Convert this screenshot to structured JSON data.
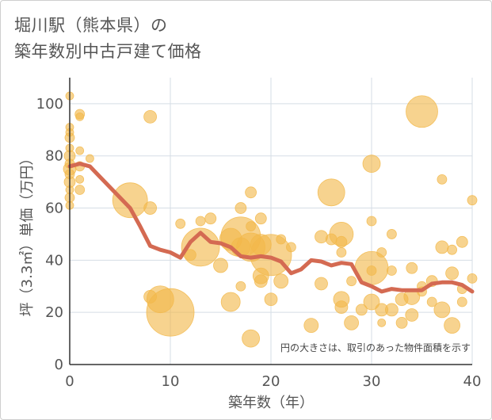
{
  "chart_data": {
    "type": "scatter",
    "title_lines": [
      "堀川駅（熊本県）の",
      "築年数別中古戸建て価格"
    ],
    "xlabel": "築年数（年）",
    "ylabel": "坪（3.3㎡）単価（万円）",
    "xlim": [
      0,
      40
    ],
    "ylim": [
      0,
      110
    ],
    "xticks": [
      0,
      10,
      20,
      30,
      40
    ],
    "yticks": [
      0,
      20,
      40,
      60,
      80,
      100
    ],
    "grid": true,
    "annotation": "円の大きさは、取引のあった物件面積を示す",
    "colors": {
      "bubble": "#f2b84b",
      "line": "#d46a52",
      "grid": "#d5dde5",
      "axis": "#333333"
    },
    "bubbles": [
      {
        "x": 0,
        "y": 103,
        "s": 5
      },
      {
        "x": 0,
        "y": 91,
        "s": 5
      },
      {
        "x": 0,
        "y": 89,
        "s": 5
      },
      {
        "x": 0,
        "y": 87,
        "s": 6
      },
      {
        "x": 0,
        "y": 83,
        "s": 5
      },
      {
        "x": 0,
        "y": 80,
        "s": 7
      },
      {
        "x": 0,
        "y": 77,
        "s": 6
      },
      {
        "x": 0,
        "y": 75,
        "s": 8
      },
      {
        "x": 0,
        "y": 73,
        "s": 6
      },
      {
        "x": 0,
        "y": 70,
        "s": 7
      },
      {
        "x": 0,
        "y": 67,
        "s": 5
      },
      {
        "x": 0,
        "y": 64,
        "s": 6
      },
      {
        "x": 0,
        "y": 61,
        "s": 5
      },
      {
        "x": 1,
        "y": 96,
        "s": 6
      },
      {
        "x": 1,
        "y": 95,
        "s": 5
      },
      {
        "x": 1,
        "y": 82,
        "s": 5
      },
      {
        "x": 1,
        "y": 76,
        "s": 6
      },
      {
        "x": 1,
        "y": 71,
        "s": 5
      },
      {
        "x": 1,
        "y": 67,
        "s": 6
      },
      {
        "x": 2,
        "y": 79,
        "s": 5
      },
      {
        "x": 6,
        "y": 63,
        "s": 22
      },
      {
        "x": 8,
        "y": 95,
        "s": 8
      },
      {
        "x": 8,
        "y": 60,
        "s": 8
      },
      {
        "x": 8,
        "y": 26,
        "s": 8
      },
      {
        "x": 9,
        "y": 25,
        "s": 17
      },
      {
        "x": 10,
        "y": 20,
        "s": 30
      },
      {
        "x": 11,
        "y": 54,
        "s": 6
      },
      {
        "x": 12,
        "y": 42,
        "s": 7
      },
      {
        "x": 13,
        "y": 45,
        "s": 24
      },
      {
        "x": 13,
        "y": 55,
        "s": 6
      },
      {
        "x": 14,
        "y": 56,
        "s": 7
      },
      {
        "x": 15,
        "y": 38,
        "s": 9
      },
      {
        "x": 16,
        "y": 48,
        "s": 14
      },
      {
        "x": 16,
        "y": 24,
        "s": 12
      },
      {
        "x": 17,
        "y": 60,
        "s": 7
      },
      {
        "x": 17,
        "y": 49,
        "s": 25
      },
      {
        "x": 17,
        "y": 45,
        "s": 12
      },
      {
        "x": 17,
        "y": 30,
        "s": 6
      },
      {
        "x": 18,
        "y": 66,
        "s": 7
      },
      {
        "x": 18,
        "y": 53,
        "s": 6
      },
      {
        "x": 18,
        "y": 45,
        "s": 18
      },
      {
        "x": 18,
        "y": 10,
        "s": 11
      },
      {
        "x": 19,
        "y": 56,
        "s": 7
      },
      {
        "x": 19,
        "y": 46,
        "s": 13
      },
      {
        "x": 19,
        "y": 34,
        "s": 10
      },
      {
        "x": 19,
        "y": 32,
        "s": 8
      },
      {
        "x": 20,
        "y": 42,
        "s": 26
      },
      {
        "x": 20,
        "y": 25,
        "s": 8
      },
      {
        "x": 21,
        "y": 48,
        "s": 6
      },
      {
        "x": 21,
        "y": 32,
        "s": 9
      },
      {
        "x": 22,
        "y": 45,
        "s": 6
      },
      {
        "x": 24,
        "y": 15,
        "s": 9
      },
      {
        "x": 25,
        "y": 49,
        "s": 8
      },
      {
        "x": 25,
        "y": 31,
        "s": 8
      },
      {
        "x": 26,
        "y": 66,
        "s": 17
      },
      {
        "x": 26,
        "y": 48,
        "s": 7
      },
      {
        "x": 27,
        "y": 50,
        "s": 15
      },
      {
        "x": 27,
        "y": 47,
        "s": 7
      },
      {
        "x": 27,
        "y": 43,
        "s": 6
      },
      {
        "x": 27,
        "y": 25,
        "s": 10
      },
      {
        "x": 27,
        "y": 22,
        "s": 8
      },
      {
        "x": 28,
        "y": 32,
        "s": 6
      },
      {
        "x": 28,
        "y": 16,
        "s": 9
      },
      {
        "x": 29,
        "y": 21,
        "s": 7
      },
      {
        "x": 30,
        "y": 77,
        "s": 11
      },
      {
        "x": 30,
        "y": 55,
        "s": 6
      },
      {
        "x": 30,
        "y": 37,
        "s": 21
      },
      {
        "x": 30,
        "y": 36,
        "s": 6
      },
      {
        "x": 30,
        "y": 24,
        "s": 10
      },
      {
        "x": 31,
        "y": 43,
        "s": 6
      },
      {
        "x": 31,
        "y": 21,
        "s": 8
      },
      {
        "x": 31,
        "y": 16,
        "s": 5
      },
      {
        "x": 32,
        "y": 50,
        "s": 6
      },
      {
        "x": 32,
        "y": 36,
        "s": 6
      },
      {
        "x": 32,
        "y": 21,
        "s": 8
      },
      {
        "x": 33,
        "y": 25,
        "s": 8
      },
      {
        "x": 33,
        "y": 16,
        "s": 7
      },
      {
        "x": 34,
        "y": 37,
        "s": 7
      },
      {
        "x": 34,
        "y": 26,
        "s": 10
      },
      {
        "x": 34,
        "y": 19,
        "s": 8
      },
      {
        "x": 35,
        "y": 97,
        "s": 20
      },
      {
        "x": 35,
        "y": 30,
        "s": 6
      },
      {
        "x": 35,
        "y": 28,
        "s": 6
      },
      {
        "x": 37,
        "y": 71,
        "s": 6
      },
      {
        "x": 37,
        "y": 45,
        "s": 8
      },
      {
        "x": 37,
        "y": 21,
        "s": 10
      },
      {
        "x": 36,
        "y": 32,
        "s": 7
      },
      {
        "x": 36,
        "y": 24,
        "s": 6
      },
      {
        "x": 38,
        "y": 44,
        "s": 6
      },
      {
        "x": 38,
        "y": 35,
        "s": 8
      },
      {
        "x": 38,
        "y": 15,
        "s": 10
      },
      {
        "x": 39,
        "y": 47,
        "s": 7
      },
      {
        "x": 39,
        "y": 29,
        "s": 6
      },
      {
        "x": 39,
        "y": 24,
        "s": 6
      },
      {
        "x": 40,
        "y": 63,
        "s": 6
      },
      {
        "x": 40,
        "y": 33,
        "s": 6
      }
    ],
    "trend": {
      "x": [
        0,
        1,
        2,
        3,
        4,
        5,
        6,
        7,
        8,
        9,
        10,
        11,
        12,
        13,
        14,
        15,
        16,
        17,
        18,
        19,
        20,
        21,
        22,
        23,
        24,
        25,
        26,
        27,
        28,
        29,
        30,
        31,
        32,
        33,
        34,
        35,
        36,
        37,
        38,
        39,
        40
      ],
      "y": [
        76,
        77,
        76,
        72,
        68,
        64,
        60,
        53,
        45.5,
        44,
        43,
        41,
        47,
        50.5,
        47,
        46.5,
        45,
        41.5,
        41,
        41.5,
        41,
        39.5,
        35,
        36.5,
        40,
        39.5,
        38,
        39,
        38.5,
        31.5,
        30,
        28,
        29,
        28.5,
        28.5,
        28.5,
        31,
        31.5,
        31.5,
        30.5,
        28
      ]
    }
  }
}
